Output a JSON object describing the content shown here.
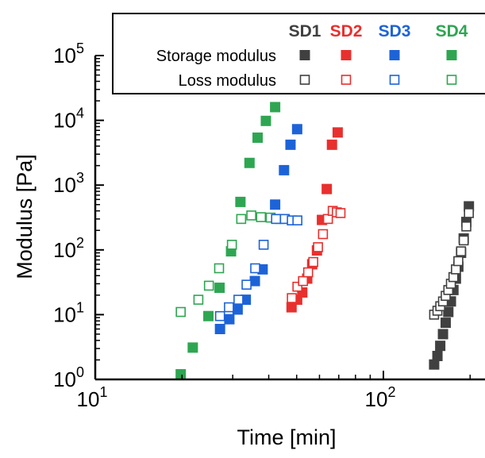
{
  "chart_data": {
    "type": "scatter",
    "title": "",
    "xlabel": "Time [min]",
    "ylabel": "Modulus [Pa]",
    "xscale": "log",
    "yscale": "log",
    "xlim": [
      10,
      220
    ],
    "ylim": [
      1,
      100000
    ],
    "x_ticks": [
      {
        "value": 10,
        "base": "10",
        "exp": "1"
      },
      {
        "value": 100,
        "base": "10",
        "exp": "2"
      }
    ],
    "y_ticks": [
      {
        "value": 1,
        "base": "10",
        "exp": "0"
      },
      {
        "value": 10,
        "base": "10",
        "exp": "1"
      },
      {
        "value": 100,
        "base": "10",
        "exp": "2"
      },
      {
        "value": 1000,
        "base": "10",
        "exp": "3"
      },
      {
        "value": 10000,
        "base": "10",
        "exp": "4"
      },
      {
        "value": 100000,
        "base": "10",
        "exp": "5"
      }
    ],
    "grid": false,
    "legend": {
      "placement": "top-right",
      "samples": [
        "SD1",
        "SD2",
        "SD3",
        "SD4"
      ],
      "rows": [
        "Storage modulus",
        "Loss modulus"
      ]
    },
    "colors": {
      "SD1": "#404040",
      "SD2": "#e8302e",
      "SD3": "#1d63d8",
      "SD4": "#2ea651"
    },
    "series": [
      {
        "name": "SD4",
        "modulus": "storage",
        "filled": true,
        "x": [
          19.8,
          21.8,
          24.7,
          27.0,
          29.6,
          31.9,
          34.3,
          36.6,
          39.1,
          42.1
        ],
        "y": [
          1.2,
          3.1,
          9.5,
          26,
          95,
          550,
          2200,
          5400,
          9800,
          16000
        ]
      },
      {
        "name": "SD4",
        "modulus": "loss",
        "filled": false,
        "x": [
          19.8,
          22.8,
          24.8,
          26.9,
          29.8,
          32.1,
          34.8,
          37.6,
          40.6,
          43.6
        ],
        "y": [
          11,
          17,
          28,
          52,
          120,
          300,
          340,
          320,
          315,
          300
        ]
      },
      {
        "name": "SD3",
        "modulus": "storage",
        "filled": true,
        "x": [
          27.1,
          29.2,
          31.2,
          33.3,
          35.8,
          38.1,
          42.1,
          45.2,
          47.6,
          50.2
        ],
        "y": [
          6,
          8.5,
          12,
          17,
          33,
          50,
          500,
          1700,
          4200,
          7300
        ]
      },
      {
        "name": "SD3",
        "modulus": "loss",
        "filled": false,
        "x": [
          27.1,
          29.1,
          31.4,
          33.5,
          35.9,
          38.4,
          42.4,
          45.5,
          48.1,
          50.3
        ],
        "y": [
          9.5,
          13,
          17,
          29,
          52,
          120,
          300,
          300,
          285,
          285
        ]
      },
      {
        "name": "SD2",
        "modulus": "storage",
        "filled": true,
        "x": [
          48.0,
          50.2,
          52.3,
          54.4,
          56.6,
          58.8,
          61.2,
          63.6,
          66.3,
          69.4
        ],
        "y": [
          13,
          17,
          22,
          36,
          60,
          98,
          290,
          870,
          4200,
          6500
        ]
      },
      {
        "name": "SD2",
        "modulus": "loss",
        "filled": false,
        "x": [
          48.1,
          50.3,
          52.6,
          54.8,
          57.1,
          59.3,
          61.7,
          64.2,
          66.7,
          68.9,
          71.0
        ],
        "y": [
          18,
          27,
          33,
          45,
          65,
          110,
          175,
          300,
          400,
          380,
          370
        ]
      },
      {
        "name": "SD1",
        "modulus": "storage",
        "filled": true,
        "x": [
          150.0,
          154.0,
          157.5,
          161.0,
          164.5,
          168.0,
          171.5,
          175.0,
          178.5,
          182.0,
          186.0,
          190.0,
          194.0,
          198.0
        ],
        "y": [
          1.7,
          2.3,
          3.3,
          5.0,
          7.5,
          11,
          16,
          24,
          36,
          55,
          90,
          150,
          270,
          470
        ]
      },
      {
        "name": "SD1",
        "modulus": "loss",
        "filled": false,
        "x": [
          150.0,
          154.0,
          157.5,
          161.0,
          164.5,
          168.0,
          171.5,
          175.0,
          178.5,
          182.0,
          186.0,
          190.0,
          194.0,
          198.0
        ],
        "y": [
          10,
          11.5,
          13.5,
          16,
          19.5,
          24,
          30,
          38,
          50,
          67,
          95,
          140,
          230,
          370
        ]
      }
    ]
  }
}
